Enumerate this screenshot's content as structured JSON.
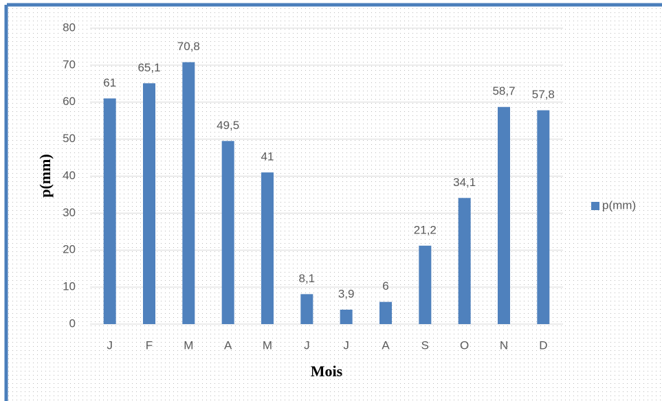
{
  "chart_data": {
    "type": "bar",
    "x_label": "Mois",
    "y_label": "p(mm)",
    "categories": [
      "J",
      "F",
      "M",
      "A",
      "M",
      "J",
      "J",
      "A",
      "S",
      "O",
      "N",
      "D"
    ],
    "series": [
      {
        "name": "p(mm)",
        "color": "#4f81bd",
        "values": [
          61,
          65.1,
          70.8,
          49.5,
          41,
          8.1,
          3.9,
          6,
          21.2,
          34.1,
          58.7,
          57.8
        ],
        "value_labels": [
          "61",
          "65,1",
          "70,8",
          "49,5",
          "41",
          "8,1",
          "3,9",
          "6",
          "21,2",
          "34,1",
          "58,7",
          "57,8"
        ]
      }
    ],
    "ylim": [
      0,
      80
    ],
    "yticks": [
      0,
      10,
      20,
      30,
      40,
      50,
      60,
      70,
      80
    ],
    "grid": true,
    "legend": "right"
  }
}
